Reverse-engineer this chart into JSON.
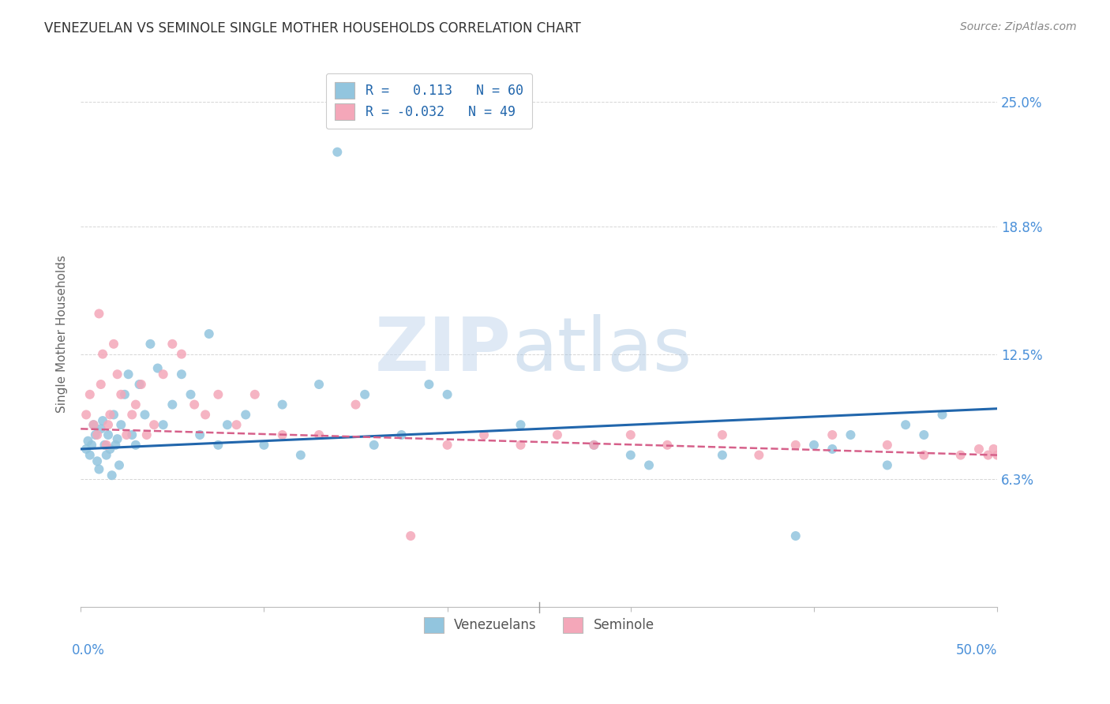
{
  "title": "VENEZUELAN VS SEMINOLE SINGLE MOTHER HOUSEHOLDS CORRELATION CHART",
  "source": "Source: ZipAtlas.com",
  "ylabel": "Single Mother Households",
  "ytick_values": [
    6.3,
    12.5,
    18.8,
    25.0
  ],
  "ytick_labels": [
    "6.3%",
    "12.5%",
    "18.8%",
    "25.0%"
  ],
  "xlim": [
    0.0,
    50.0
  ],
  "ylim": [
    0.0,
    27.0
  ],
  "legend_label1": "R =   0.113   N = 60",
  "legend_label2": "R = -0.032   N = 49",
  "legend_group1": "Venezuelans",
  "legend_group2": "Seminole",
  "blue_color": "#92c5de",
  "pink_color": "#f4a7b9",
  "blue_line_color": "#2166ac",
  "pink_line_color": "#d6608a",
  "watermark_zip": "ZIP",
  "watermark_atlas": "atlas",
  "venezuelan_x": [
    0.3,
    0.4,
    0.5,
    0.6,
    0.7,
    0.8,
    0.9,
    1.0,
    1.1,
    1.2,
    1.3,
    1.4,
    1.5,
    1.6,
    1.7,
    1.8,
    1.9,
    2.0,
    2.1,
    2.2,
    2.4,
    2.6,
    2.8,
    3.0,
    3.2,
    3.5,
    3.8,
    4.2,
    4.5,
    5.0,
    5.5,
    6.0,
    6.5,
    7.0,
    7.5,
    8.0,
    9.0,
    10.0,
    11.0,
    12.0,
    13.0,
    14.0,
    15.5,
    16.0,
    17.5,
    19.0,
    20.0,
    24.0,
    28.0,
    30.0,
    31.0,
    35.0,
    39.0,
    40.0,
    41.0,
    42.0,
    44.0,
    45.0,
    46.0,
    47.0
  ],
  "venezuelan_y": [
    7.8,
    8.2,
    7.5,
    8.0,
    9.0,
    8.5,
    7.2,
    6.8,
    8.8,
    9.2,
    8.0,
    7.5,
    8.5,
    7.8,
    6.5,
    9.5,
    8.0,
    8.3,
    7.0,
    9.0,
    10.5,
    11.5,
    8.5,
    8.0,
    11.0,
    9.5,
    13.0,
    11.8,
    9.0,
    10.0,
    11.5,
    10.5,
    8.5,
    13.5,
    8.0,
    9.0,
    9.5,
    8.0,
    10.0,
    7.5,
    11.0,
    22.5,
    10.5,
    8.0,
    8.5,
    11.0,
    10.5,
    9.0,
    8.0,
    7.5,
    7.0,
    7.5,
    3.5,
    8.0,
    7.8,
    8.5,
    7.0,
    9.0,
    8.5,
    9.5
  ],
  "seminole_x": [
    0.3,
    0.5,
    0.7,
    0.9,
    1.0,
    1.1,
    1.2,
    1.4,
    1.5,
    1.6,
    1.8,
    2.0,
    2.2,
    2.5,
    2.8,
    3.0,
    3.3,
    3.6,
    4.0,
    4.5,
    5.0,
    5.5,
    6.2,
    6.8,
    7.5,
    8.5,
    9.5,
    11.0,
    13.0,
    15.0,
    18.0,
    20.0,
    22.0,
    24.0,
    26.0,
    28.0,
    30.0,
    32.0,
    35.0,
    37.0,
    39.0,
    41.0,
    44.0,
    46.0,
    48.0,
    49.0,
    49.5,
    49.8,
    50.0
  ],
  "seminole_y": [
    9.5,
    10.5,
    9.0,
    8.5,
    14.5,
    11.0,
    12.5,
    8.0,
    9.0,
    9.5,
    13.0,
    11.5,
    10.5,
    8.5,
    9.5,
    10.0,
    11.0,
    8.5,
    9.0,
    11.5,
    13.0,
    12.5,
    10.0,
    9.5,
    10.5,
    9.0,
    10.5,
    8.5,
    8.5,
    10.0,
    3.5,
    8.0,
    8.5,
    8.0,
    8.5,
    8.0,
    8.5,
    8.0,
    8.5,
    7.5,
    8.0,
    8.5,
    8.0,
    7.5,
    7.5,
    7.8,
    7.5,
    7.8,
    7.5
  ],
  "blue_line_x": [
    0.0,
    50.0
  ],
  "blue_line_y": [
    7.8,
    9.8
  ],
  "pink_line_x": [
    0.0,
    50.0
  ],
  "pink_line_y": [
    8.8,
    7.5
  ],
  "grid_color": "#cccccc",
  "background_color": "#ffffff",
  "title_color": "#333333",
  "tick_label_color": "#4a90d9",
  "axis_color": "#4a90d9"
}
